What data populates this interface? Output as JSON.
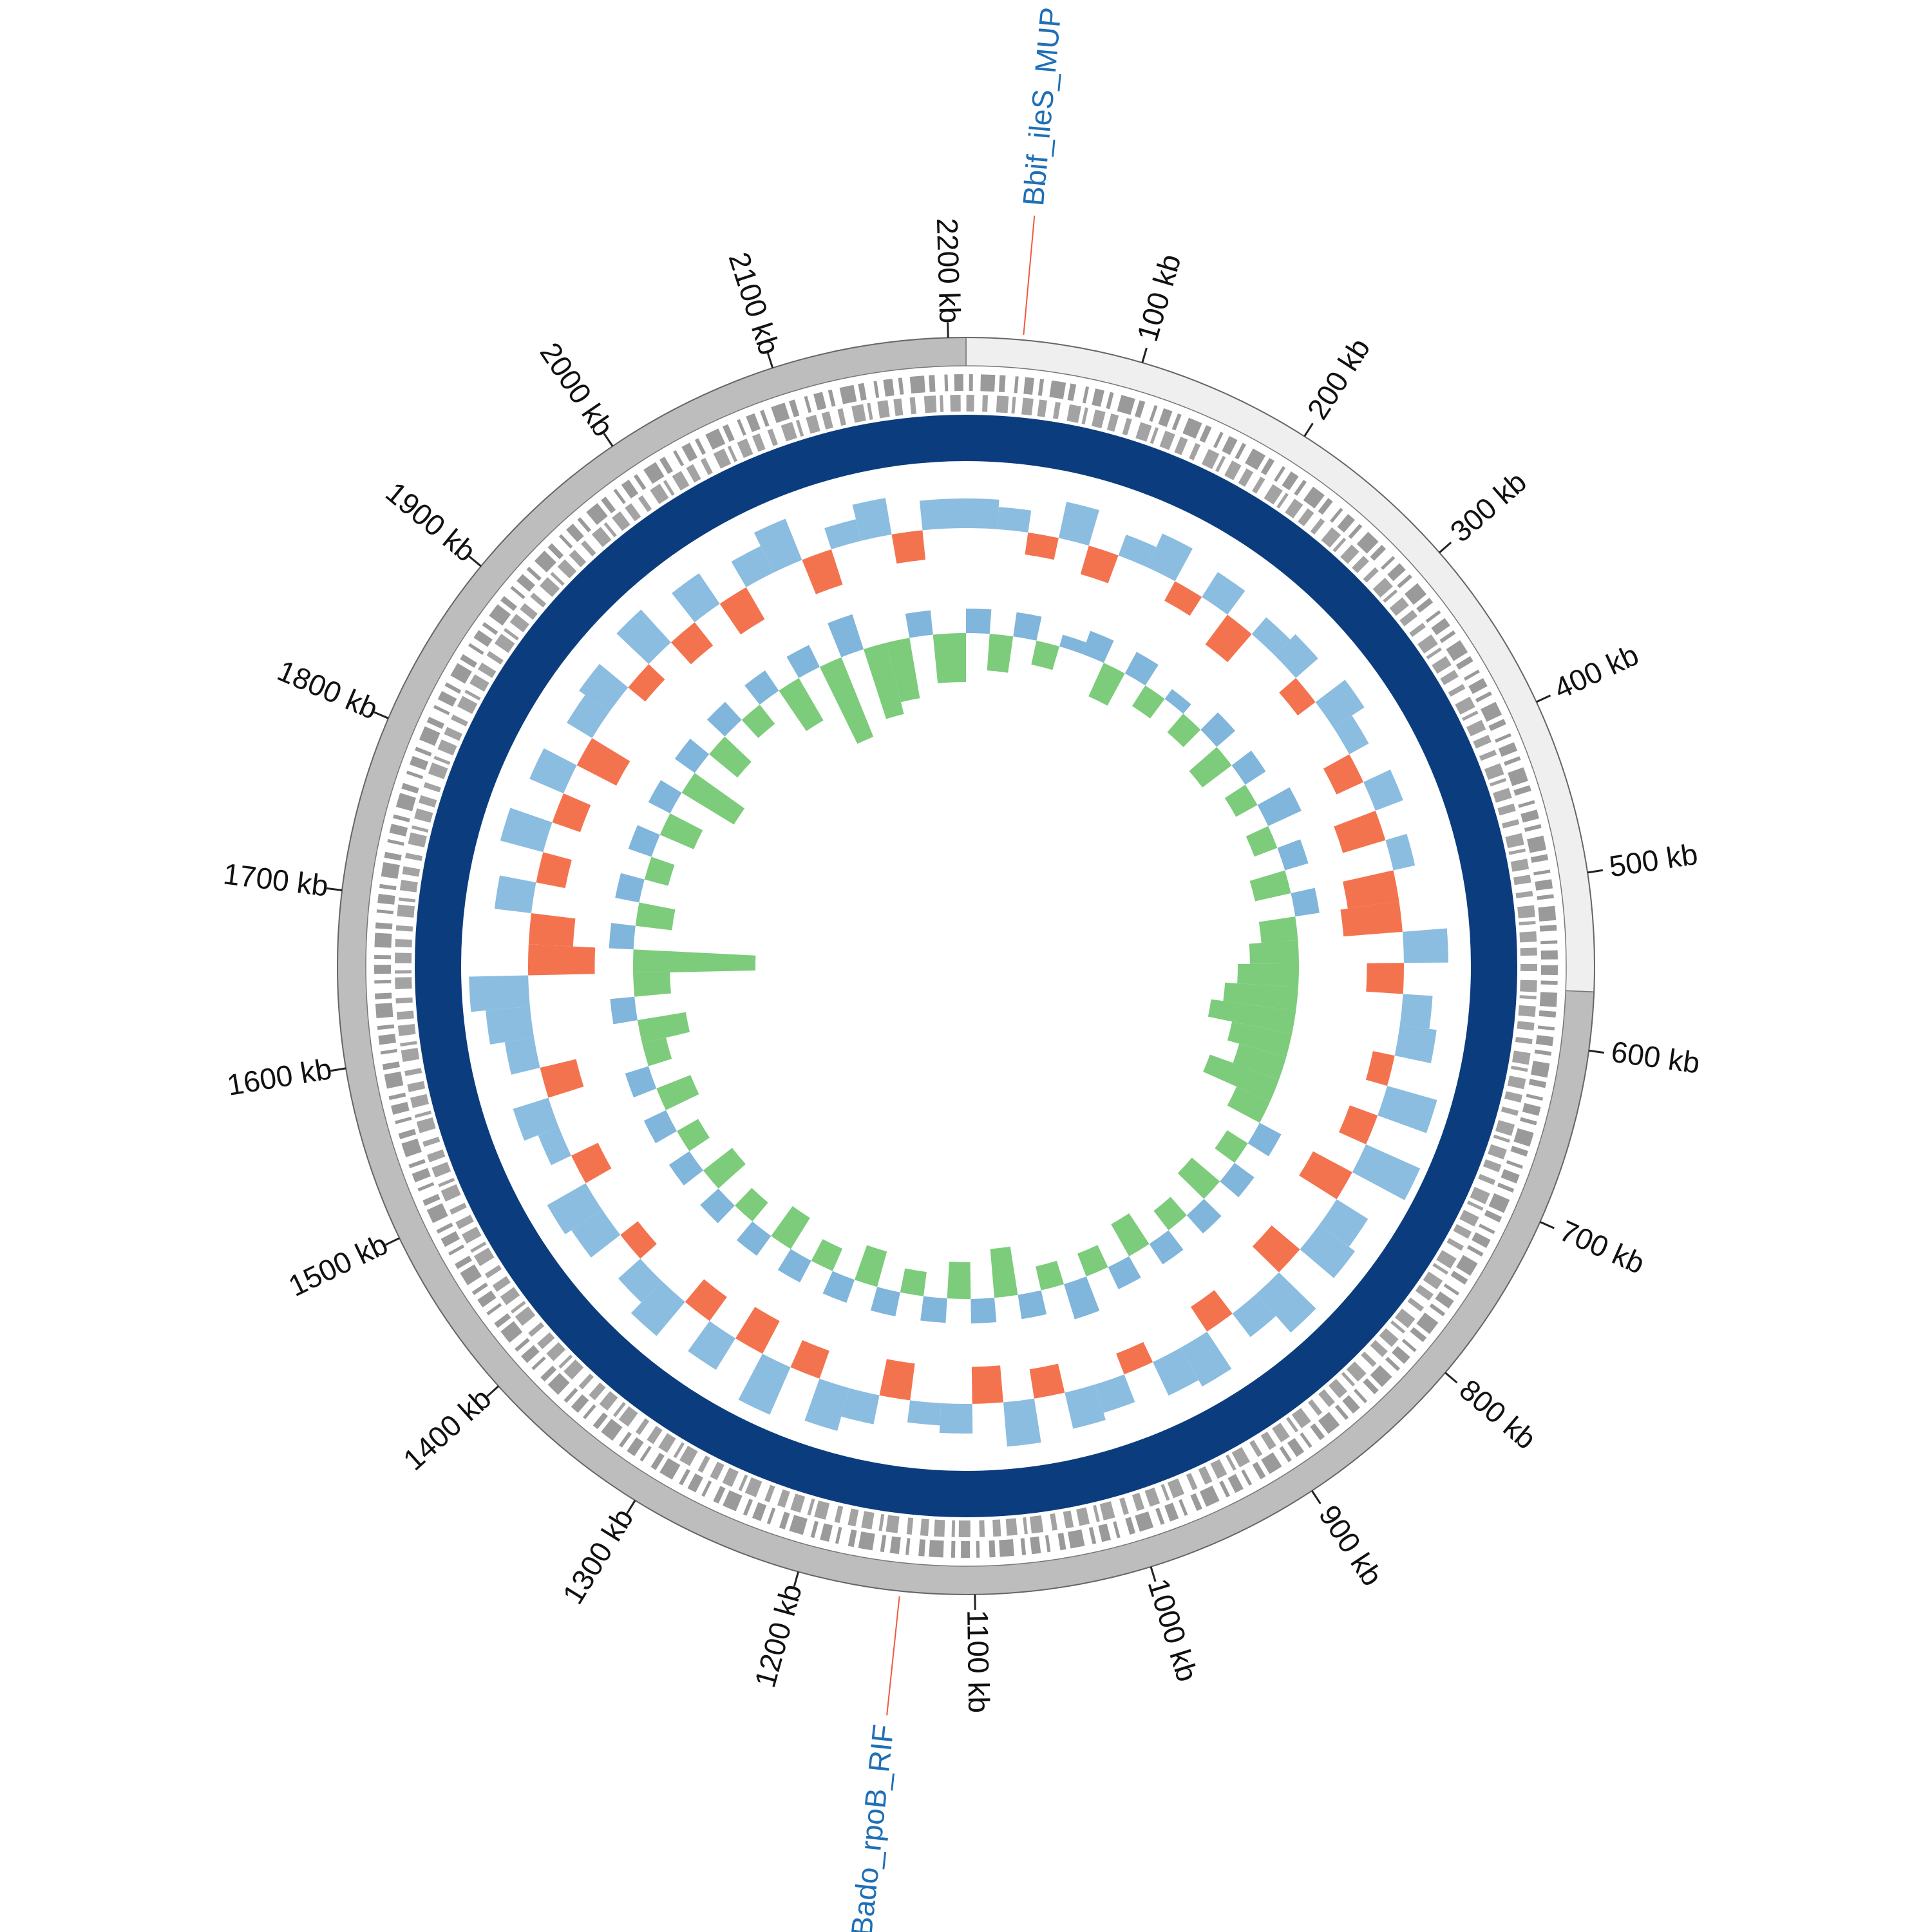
{
  "chart_data": {
    "type": "circular_genome",
    "xlim": [
      0,
      2210
    ],
    "xticks": [
      {
        "value": 100,
        "label": "100 kb"
      },
      {
        "value": 200,
        "label": "200 kb"
      },
      {
        "value": 300,
        "label": "300 kb"
      },
      {
        "value": 400,
        "label": "400 kb"
      },
      {
        "value": 500,
        "label": "500 kb"
      },
      {
        "value": 600,
        "label": "600 kb"
      },
      {
        "value": 700,
        "label": "700 kb"
      },
      {
        "value": 800,
        "label": "800 kb"
      },
      {
        "value": 900,
        "label": "900 kb"
      },
      {
        "value": 1000,
        "label": "1000 kb"
      },
      {
        "value": 1100,
        "label": "1100 kb"
      },
      {
        "value": 1200,
        "label": "1200 kb"
      },
      {
        "value": 1300,
        "label": "1300 kb"
      },
      {
        "value": 1400,
        "label": "1400 kb"
      },
      {
        "value": 1500,
        "label": "1500 kb"
      },
      {
        "value": 1600,
        "label": "1600 kb"
      },
      {
        "value": 1700,
        "label": "1700 kb"
      },
      {
        "value": 1800,
        "label": "1800 kb"
      },
      {
        "value": 1900,
        "label": "1900 kb"
      },
      {
        "value": 2000,
        "label": "2000 kb"
      },
      {
        "value": 2100,
        "label": "2100 kb"
      },
      {
        "value": 2200,
        "label": "2200 kb"
      }
    ],
    "contigs": [
      {
        "start": 0,
        "end": 567,
        "color": "#efefef"
      },
      {
        "start": 567,
        "end": 2210,
        "color": "#bdbdbd"
      }
    ],
    "annotations": [
      {
        "label": "Bbif_ileS_MUP",
        "position": 32,
        "color": "#1f6fb5",
        "line_color": "#f05a3c"
      },
      {
        "label": "Bado_rpoB_RIF",
        "position": 1142,
        "color": "#1f6fb5",
        "line_color": "#f05a3c"
      }
    ],
    "ring_color": "#0b3d7e",
    "tracks": [
      {
        "ylim": [
          -1,
          1
        ],
        "positive_color": "#8bbde0",
        "negative_color": "#f4734f",
        "x": [
          0,
          25,
          50,
          75,
          100,
          125,
          150,
          175,
          200,
          225,
          250,
          275,
          300,
          325,
          350,
          375,
          400,
          425,
          450,
          475,
          500,
          525,
          550,
          575,
          600,
          625,
          650,
          675,
          700,
          725,
          750,
          775,
          800,
          825,
          850,
          875,
          900,
          925,
          950,
          975,
          1000,
          1025,
          1050,
          1075,
          1100,
          1125,
          1150,
          1175,
          1200,
          1225,
          1250,
          1275,
          1300,
          1325,
          1350,
          1375,
          1400,
          1425,
          1450,
          1475,
          1500,
          1525,
          1550,
          1575,
          1600,
          1625,
          1650,
          1675,
          1700,
          1725,
          1750,
          1775,
          1800,
          1825,
          1850,
          1875,
          1900,
          1925,
          1950,
          1975,
          2000,
          2025,
          2050,
          2075,
          2100,
          2125,
          2150,
          2175
        ],
        "values": [
          0.4,
          0.3,
          -0.3,
          0.5,
          -0.4,
          0.3,
          0.5,
          -0.3,
          0.4,
          -0.5,
          0.3,
          0.4,
          -0.3,
          0.5,
          0.3,
          -0.4,
          0.4,
          -0.6,
          0.3,
          -0.7,
          -0.8,
          0.6,
          -0.5,
          0.4,
          0.5,
          -0.3,
          0.7,
          -0.4,
          0.8,
          -0.6,
          0.5,
          0.6,
          -0.5,
          0.7,
          0.4,
          -0.4,
          0.6,
          0.5,
          -0.3,
          0.4,
          0.5,
          -0.4,
          0.6,
          -0.5,
          0.4,
          0.3,
          -0.5,
          0.4,
          0.6,
          -0.4,
          0.7,
          -0.5,
          0.5,
          -0.4,
          0.6,
          0.4,
          -0.3,
          0.5,
          0.6,
          -0.4,
          0.3,
          0.5,
          -0.5,
          0.4,
          0.6,
          0.8,
          -0.9,
          -0.6,
          0.5,
          -0.4,
          0.6,
          -0.4,
          0.5,
          -0.6,
          0.4,
          0.5,
          -0.3,
          0.6,
          -0.4,
          0.5,
          -0.5,
          0.4,
          0.6,
          -0.5,
          0.3,
          0.5,
          -0.4,
          0.4
        ]
      },
      {
        "ylim": [
          -1,
          1
        ],
        "positive_color": "#80b5dc",
        "negative_color": "#7ccc7b",
        "x": [
          0,
          25,
          50,
          75,
          100,
          125,
          150,
          175,
          200,
          225,
          250,
          275,
          300,
          325,
          350,
          375,
          400,
          425,
          450,
          475,
          500,
          525,
          550,
          575,
          600,
          625,
          650,
          675,
          700,
          725,
          750,
          775,
          800,
          825,
          850,
          875,
          900,
          925,
          950,
          975,
          1000,
          1025,
          1050,
          1075,
          1100,
          1125,
          1150,
          1175,
          1200,
          1225,
          1250,
          1275,
          1300,
          1325,
          1350,
          1375,
          1400,
          1425,
          1450,
          1475,
          1500,
          1525,
          1550,
          1575,
          1600,
          1625,
          1650,
          1675,
          1700,
          1725,
          1750,
          1775,
          1800,
          1825,
          1850,
          1875,
          1900,
          1925,
          1950,
          1975,
          2000,
          2025,
          2050,
          2075,
          2100,
          2125,
          2150,
          2175
        ],
        "values": [
          0.2,
          -0.3,
          0.2,
          -0.2,
          0.1,
          0.2,
          -0.3,
          0.2,
          -0.2,
          0.1,
          -0.2,
          0.2,
          -0.3,
          0.2,
          -0.2,
          0.3,
          -0.2,
          0.2,
          -0.3,
          0.2,
          -0.3,
          -0.4,
          -0.5,
          -0.6,
          -0.7,
          -0.5,
          -0.4,
          -0.6,
          -0.3,
          0.2,
          -0.2,
          0.2,
          -0.3,
          0.2,
          -0.2,
          0.2,
          -0.3,
          0.2,
          -0.2,
          0.3,
          -0.2,
          0.2,
          -0.4,
          0.2,
          -0.3,
          0.2,
          -0.2,
          0.2,
          -0.3,
          0.2,
          -0.2,
          0.2,
          -0.3,
          0.2,
          -0.2,
          0.2,
          -0.3,
          0.2,
          -0.2,
          0.2,
          -0.3,
          0.2,
          -0.2,
          -0.4,
          0.2,
          -0.3,
          -1.0,
          0.2,
          -0.3,
          0.2,
          -0.2,
          0.2,
          -0.3,
          0.2,
          -0.5,
          0.2,
          -0.3,
          0.2,
          -0.2,
          0.2,
          -0.4,
          0.2,
          -0.7,
          0.3,
          -0.6,
          -0.5,
          0.2,
          -0.4
        ]
      }
    ]
  }
}
